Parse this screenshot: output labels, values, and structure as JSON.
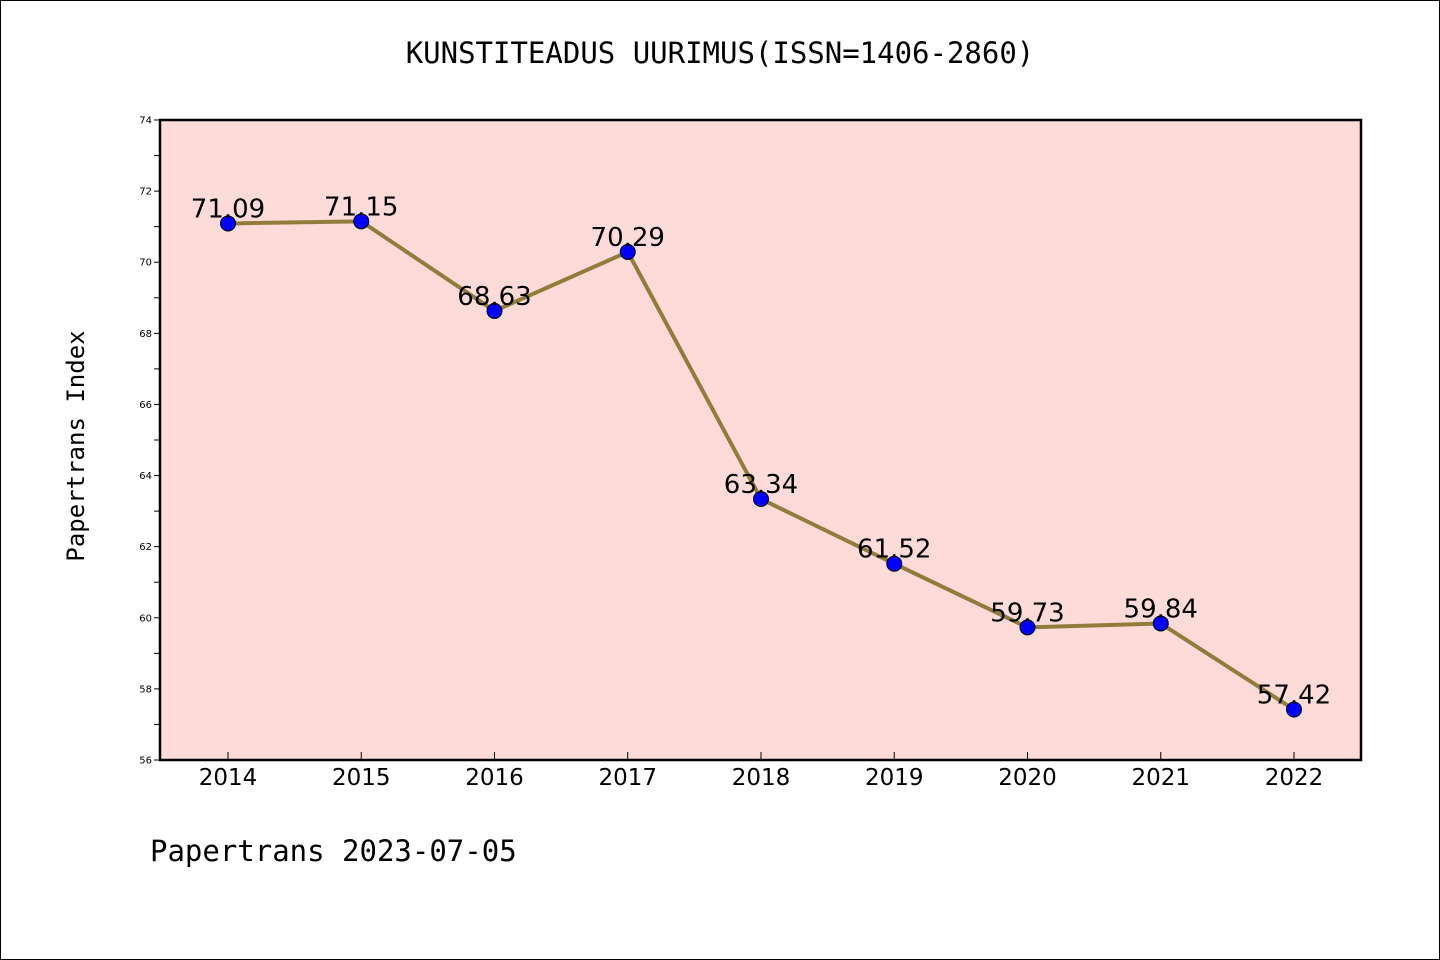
{
  "colors": {
    "plot_background": "#fddbd8",
    "line": "#927c3c",
    "marker": "#0000ff",
    "frame": "#000000"
  },
  "footer": {
    "text": "Papertrans 2023-07-05"
  },
  "chart_data": {
    "type": "line",
    "title": "KUNSTITEADUS UURIMUS(ISSN=1406-2860)",
    "xlabel": "",
    "ylabel": "Papertrans Index",
    "categories": [
      "2014",
      "2015",
      "2016",
      "2017",
      "2018",
      "2019",
      "2020",
      "2021",
      "2022"
    ],
    "series": [
      {
        "values": [
          71.09,
          71.15,
          68.63,
          70.29,
          63.34,
          61.52,
          59.73,
          59.84,
          57.42
        ]
      }
    ],
    "data_labels": [
      "71.09",
      "71.15",
      "68.63",
      "70.29",
      "63.34",
      "61.52",
      "59.73",
      "59.84",
      "57.42"
    ],
    "ylim": [
      56,
      74
    ],
    "yticks": [
      56,
      58,
      60,
      62,
      64,
      66,
      68,
      70,
      72,
      74
    ],
    "grid": false,
    "legend": "none"
  }
}
